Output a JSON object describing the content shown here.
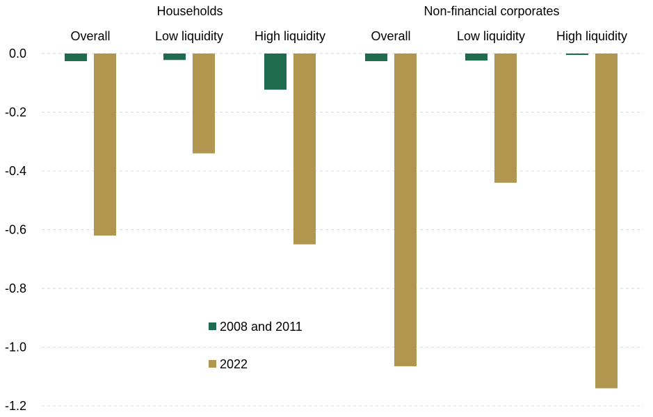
{
  "chart_data": {
    "type": "bar",
    "groups": [
      {
        "label": "Households",
        "categories": [
          "Overall",
          "Low liquidity",
          "High liquidity"
        ]
      },
      {
        "label": "Non-financial corporates",
        "categories": [
          "Overall",
          "Low liquidity",
          "High liquidity"
        ]
      }
    ],
    "categories": [
      "Overall",
      "Low liquidity",
      "High liquidity",
      "Overall",
      "Low liquidity",
      "High liquidity"
    ],
    "series": [
      {
        "name": "2008 and 2011",
        "color": "#1f6b4f",
        "values": [
          -0.026,
          -0.022,
          -0.123,
          -0.026,
          -0.024,
          -0.005
        ]
      },
      {
        "name": "2022",
        "color": "#b0964e",
        "values": [
          -0.62,
          -0.34,
          -0.65,
          -1.065,
          -0.44,
          -1.14
        ]
      }
    ],
    "ylim": [
      -1.2,
      0.0
    ],
    "yticks": [
      "0.0",
      "-0.2",
      "-0.4",
      "-0.6",
      "-0.8",
      "-1.0",
      "-1.2"
    ],
    "ytick_values": [
      0.0,
      -0.2,
      -0.4,
      -0.6,
      -0.8,
      -1.0,
      -1.2
    ],
    "grid": true,
    "legend_position": "lower-left-center"
  }
}
